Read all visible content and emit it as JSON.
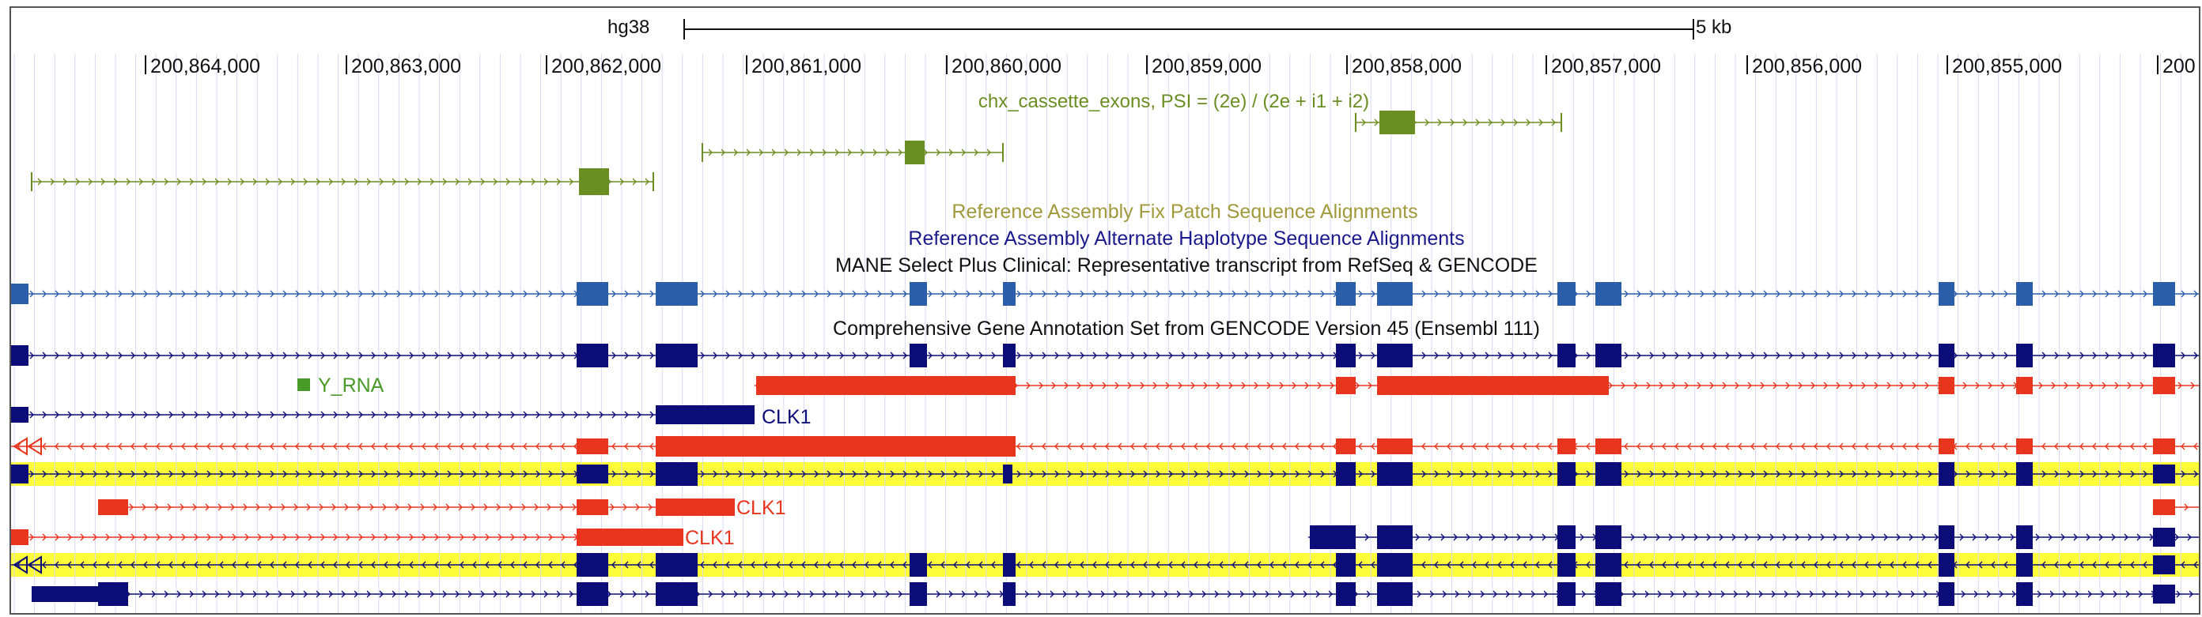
{
  "ruler": {
    "assembly": "hg38",
    "scale_label": "5 kb",
    "ticks": [
      "200,864,000",
      "200,863,000",
      "200,862,000",
      "200,861,000",
      "200,860,000",
      "200,859,000",
      "200,858,000",
      "200,857,000",
      "200,856,000",
      "200,855,000",
      "200"
    ]
  },
  "tracks": {
    "chx_label": "chx_cassette_exons, PSI = (2e) / (2e + i1 + i2)",
    "fix_patch_label": "Reference Assembly Fix Patch Sequence Alignments",
    "alt_haplotype_label": "Reference Assembly Alternate Haplotype Sequence Alignments",
    "mane_label": "MANE Select Plus Clinical: Representative transcript from RefSeq & GENCODE",
    "gencode_label": "Comprehensive Gene Annotation Set from GENCODE Version 45 (Ensembl 111)",
    "y_rna_label": "Y_RNA",
    "gene_labels": [
      "CLK1",
      "CLK1",
      "CLK1"
    ]
  },
  "colors": {
    "chx_green": "#6b8e23",
    "y_rna_green": "#4a9a2a",
    "fix_patch_olive": "#a19a3c",
    "alt_hap_navy": "#1a1a8c",
    "mane_blue": "#2a5ea8",
    "navy": "#0c0c78",
    "red": "#e8351e",
    "highlight_yellow": "#fdfd3a",
    "grid_blue": "#d8d8f4"
  }
}
